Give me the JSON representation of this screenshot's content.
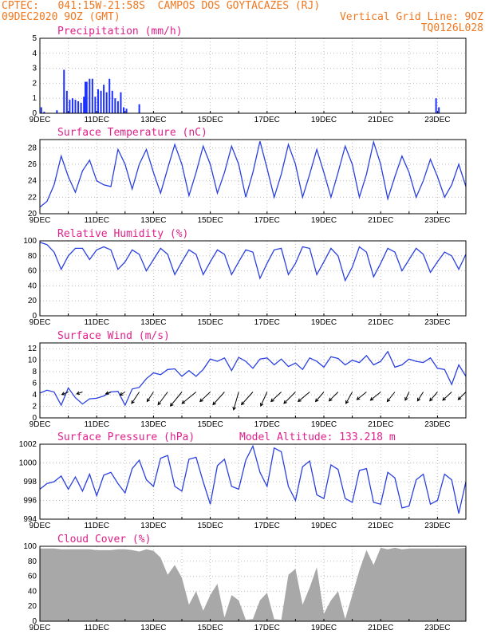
{
  "header": {
    "line1_left": "CPTEC:   041:15W-21:58S  CAMPOS DOS GOYTACAZES (RJ)",
    "line2_left": "09DEC2020 9OZ (GMT)",
    "line2_right": "Vertical Grid Line: 9OZ",
    "line3_right": "TQ0126L028"
  },
  "colors": {
    "series": "#2a40e0",
    "title": "#e0208a",
    "bars": "#1c30ff",
    "cloud": "#a8a8a8",
    "grid": "#bdbdbd"
  },
  "x_tick_labels": [
    "9DEC",
    "11DEC",
    "13DEC",
    "15DEC",
    "17DEC",
    "19DEC",
    "21DEC",
    "23DEC"
  ],
  "chart_data": [
    {
      "type": "bar",
      "title": "Precipitation  (mm/h)",
      "ylim": [
        0,
        5
      ],
      "yticks": [
        0,
        1,
        2,
        3,
        4,
        5
      ],
      "x_unit": "days since 9DEC 00Z",
      "x": [
        0.05,
        0.15,
        0.6,
        0.85,
        0.95,
        1.05,
        1.15,
        1.25,
        1.35,
        1.45,
        1.55,
        1.6,
        1.65,
        1.75,
        1.85,
        1.95,
        2.05,
        2.15,
        2.25,
        2.35,
        2.45,
        2.55,
        2.65,
        2.75,
        2.85,
        2.95,
        3.05,
        3.5,
        13.95,
        14.05
      ],
      "values": [
        0.4,
        0.1,
        0.2,
        2.9,
        1.5,
        0.9,
        1.0,
        0.9,
        0.8,
        0.7,
        1.1,
        2.1,
        2.1,
        2.3,
        2.3,
        1.1,
        1.6,
        1.5,
        1.9,
        1.4,
        2.3,
        1.5,
        1.0,
        0.8,
        1.4,
        0.4,
        0.3,
        0.6,
        1.0,
        0.4
      ]
    },
    {
      "type": "line",
      "title": "Surface Temperature (nC)",
      "ylim": [
        20,
        29
      ],
      "yticks": [
        20,
        22,
        24,
        26,
        28
      ],
      "x": [
        0,
        0.25,
        0.5,
        0.75,
        1,
        1.25,
        1.5,
        1.75,
        2,
        2.25,
        2.5,
        2.75,
        3,
        3.25,
        3.5,
        3.75,
        4,
        4.25,
        4.5,
        4.75,
        5,
        5.25,
        5.5,
        5.75,
        6,
        6.25,
        6.5,
        6.75,
        7,
        7.25,
        7.5,
        7.75,
        8,
        8.25,
        8.5,
        8.75,
        9,
        9.25,
        9.5,
        9.75,
        10,
        10.25,
        10.5,
        10.75,
        11,
        11.25,
        11.5,
        11.75,
        12,
        12.25,
        12.5,
        12.75,
        13,
        13.25,
        13.5,
        13.75,
        14,
        14.25,
        14.5,
        14.75,
        15
      ],
      "values": [
        20.8,
        21.5,
        23.5,
        27,
        24.5,
        22.6,
        25.2,
        26.5,
        24,
        23.5,
        23.3,
        27.8,
        26,
        23,
        26,
        27.8,
        25,
        22.5,
        25.5,
        28.4,
        26,
        22.2,
        25,
        28.2,
        26,
        22.5,
        25,
        28.2,
        26,
        22,
        25,
        28.8,
        25.5,
        22,
        24.8,
        28.4,
        26,
        22,
        24.8,
        27.8,
        25,
        22,
        25,
        28.2,
        26,
        22,
        24.8,
        28.7,
        26,
        21.8,
        24.5,
        27,
        25,
        22,
        24,
        26.6,
        24.5,
        22,
        23.5,
        26,
        23.3
      ]
    },
    {
      "type": "line",
      "title": "Relative Humidity  (%)",
      "ylim": [
        0,
        100
      ],
      "yticks": [
        0,
        20,
        40,
        60,
        80,
        100
      ],
      "x": [
        0,
        0.25,
        0.5,
        0.75,
        1,
        1.25,
        1.5,
        1.75,
        2,
        2.25,
        2.5,
        2.75,
        3,
        3.25,
        3.5,
        3.75,
        4,
        4.25,
        4.5,
        4.75,
        5,
        5.25,
        5.5,
        5.75,
        6,
        6.25,
        6.5,
        6.75,
        7,
        7.25,
        7.5,
        7.75,
        8,
        8.25,
        8.5,
        8.75,
        9,
        9.25,
        9.5,
        9.75,
        10,
        10.25,
        10.5,
        10.75,
        11,
        11.25,
        11.5,
        11.75,
        12,
        12.25,
        12.5,
        12.75,
        13,
        13.25,
        13.5,
        13.75,
        14,
        14.25,
        14.5,
        14.75,
        15
      ],
      "values": [
        98,
        95,
        85,
        62,
        80,
        90,
        90,
        75,
        88,
        92,
        88,
        62,
        72,
        88,
        82,
        60,
        75,
        90,
        82,
        55,
        72,
        88,
        82,
        55,
        72,
        88,
        82,
        55,
        72,
        88,
        85,
        50,
        70,
        88,
        90,
        55,
        70,
        92,
        90,
        55,
        72,
        90,
        80,
        47,
        65,
        92,
        85,
        52,
        70,
        90,
        85,
        60,
        75,
        90,
        82,
        58,
        72,
        85,
        80,
        62,
        82
      ]
    },
    {
      "type": "line",
      "title": "Surface Wind  (m/s)",
      "ylim": [
        0,
        13
      ],
      "yticks": [
        0,
        2,
        4,
        6,
        8,
        10,
        12
      ],
      "x": [
        0,
        0.25,
        0.5,
        0.75,
        1,
        1.25,
        1.5,
        1.75,
        2,
        2.25,
        2.5,
        2.75,
        3,
        3.25,
        3.5,
        3.75,
        4,
        4.25,
        4.5,
        4.75,
        5,
        5.25,
        5.5,
        5.75,
        6,
        6.25,
        6.5,
        6.75,
        7,
        7.25,
        7.5,
        7.75,
        8,
        8.25,
        8.5,
        8.75,
        9,
        9.25,
        9.5,
        9.75,
        10,
        10.25,
        10.5,
        10.75,
        11,
        11.25,
        11.5,
        11.75,
        12,
        12.25,
        12.5,
        12.75,
        13,
        13.25,
        13.5,
        13.75,
        14,
        14.25,
        14.5,
        14.75,
        15
      ],
      "values": [
        4.3,
        4.8,
        4.5,
        2.2,
        5.2,
        3.5,
        2.4,
        3.3,
        3.4,
        3.8,
        4.5,
        4.6,
        2.2,
        5.0,
        5.3,
        6.8,
        7.8,
        7.5,
        8.4,
        8.5,
        7.2,
        8.2,
        7.2,
        8.4,
        10.2,
        9.8,
        10.4,
        8.2,
        10.5,
        9.8,
        8.6,
        10.2,
        10.4,
        9.2,
        10.2,
        8.9,
        9.5,
        8.4,
        10.4,
        9.8,
        8.8,
        10.6,
        10.3,
        9.2,
        10.0,
        9.6,
        10.8,
        9.2,
        9.8,
        11.5,
        8.8,
        9.2,
        10.2,
        9.8,
        9.6,
        10.4,
        8.6,
        8.4,
        5.8,
        9.2,
        7.2
      ],
      "wind_vectors": [
        {
          "x": 1,
          "u": -1.0,
          "v": -0.4
        },
        {
          "x": 1.5,
          "u": -0.9,
          "v": -0.3
        },
        {
          "x": 2.5,
          "u": -0.8,
          "v": -0.3
        },
        {
          "x": 3,
          "u": -0.8,
          "v": -0.5
        },
        {
          "x": 3.5,
          "u": -1.2,
          "v": -1.8
        },
        {
          "x": 4,
          "u": -1.0,
          "v": -1.5
        },
        {
          "x": 4.5,
          "u": -1.5,
          "v": -2.0
        },
        {
          "x": 5,
          "u": -1.8,
          "v": -2.2
        },
        {
          "x": 5.5,
          "u": -2.2,
          "v": -1.8
        },
        {
          "x": 6,
          "u": -1.6,
          "v": -1.5
        },
        {
          "x": 6.5,
          "u": -1.8,
          "v": -2.0
        },
        {
          "x": 7,
          "u": -0.8,
          "v": -2.8
        },
        {
          "x": 7.5,
          "u": -1.8,
          "v": -2.0
        },
        {
          "x": 8,
          "u": -1.0,
          "v": -2.2
        },
        {
          "x": 8.5,
          "u": -1.6,
          "v": -1.5
        },
        {
          "x": 9,
          "u": -1.8,
          "v": -1.8
        },
        {
          "x": 9.5,
          "u": -1.8,
          "v": -1.5
        },
        {
          "x": 10,
          "u": -1.3,
          "v": -1.5
        },
        {
          "x": 10.5,
          "u": -1.4,
          "v": -1.4
        },
        {
          "x": 11,
          "u": -1.0,
          "v": -1.8
        },
        {
          "x": 11.5,
          "u": -1.5,
          "v": -1.2
        },
        {
          "x": 12,
          "u": -1.6,
          "v": -1.3
        },
        {
          "x": 12.5,
          "u": -1.2,
          "v": -1.5
        },
        {
          "x": 13,
          "u": -0.6,
          "v": -1.3
        },
        {
          "x": 13.5,
          "u": -0.9,
          "v": -1.4
        },
        {
          "x": 14,
          "u": -1.2,
          "v": -1.4
        },
        {
          "x": 14.5,
          "u": -1.4,
          "v": -1.3
        },
        {
          "x": 15,
          "u": -1.2,
          "v": -1.2
        }
      ]
    },
    {
      "type": "line",
      "title": "Surface Pressure (hPa)",
      "subtitle": "Model Altitude: 133.218  m",
      "ylim": [
        994,
        1002
      ],
      "yticks": [
        994,
        996,
        998,
        1000,
        1002
      ],
      "x": [
        0,
        0.25,
        0.5,
        0.75,
        1,
        1.25,
        1.5,
        1.75,
        2,
        2.25,
        2.5,
        2.75,
        3,
        3.25,
        3.5,
        3.75,
        4,
        4.25,
        4.5,
        4.75,
        5,
        5.25,
        5.5,
        5.75,
        6,
        6.25,
        6.5,
        6.75,
        7,
        7.25,
        7.5,
        7.75,
        8,
        8.25,
        8.5,
        8.75,
        9,
        9.25,
        9.5,
        9.75,
        10,
        10.25,
        10.5,
        10.75,
        11,
        11.25,
        11.5,
        11.75,
        12,
        12.25,
        12.5,
        12.75,
        13,
        13.25,
        13.5,
        13.75,
        14,
        14.25,
        14.5,
        14.75,
        15
      ],
      "values": [
        997.2,
        997.8,
        998.0,
        998.6,
        997.2,
        998.5,
        997.0,
        998.8,
        996.5,
        998.7,
        999.0,
        997.8,
        996.8,
        999.4,
        1000.3,
        998.2,
        997.5,
        1000.5,
        1000.8,
        997.5,
        997.0,
        1000.4,
        1000.6,
        998.0,
        995.6,
        999.7,
        1000.4,
        997.5,
        997.2,
        1000.3,
        1001.8,
        999.0,
        997.5,
        1001.6,
        1001.2,
        997.5,
        996.0,
        999.6,
        1000.2,
        996.6,
        996.2,
        999.8,
        999.3,
        996.2,
        995.8,
        999.2,
        999.4,
        995.8,
        995.6,
        999.0,
        998.4,
        995.2,
        995.4,
        998.2,
        998.8,
        995.6,
        996.0,
        998.8,
        998.2,
        994.6,
        998.0
      ]
    },
    {
      "type": "area",
      "title": "Cloud Cover  (%)",
      "ylim": [
        0,
        100
      ],
      "yticks": [
        0,
        20,
        40,
        60,
        80,
        100
      ],
      "x": [
        0,
        0.25,
        0.5,
        0.75,
        1,
        1.25,
        1.5,
        1.75,
        2,
        2.25,
        2.5,
        2.75,
        3,
        3.25,
        3.5,
        3.75,
        4,
        4.25,
        4.5,
        4.75,
        5,
        5.25,
        5.5,
        5.75,
        6,
        6.25,
        6.5,
        6.75,
        7,
        7.25,
        7.5,
        7.75,
        8,
        8.25,
        8.5,
        8.75,
        9,
        9.25,
        9.5,
        9.75,
        10,
        10.25,
        10.5,
        10.75,
        11,
        11.25,
        11.5,
        11.75,
        12,
        12.25,
        12.5,
        12.75,
        13,
        13.25,
        13.5,
        13.75,
        14,
        14.25,
        14.5,
        14.75,
        15
      ],
      "values": [
        97,
        97,
        97,
        96,
        96,
        96,
        96,
        96,
        95,
        95,
        95,
        96,
        96,
        95,
        93,
        96,
        94,
        85,
        62,
        75,
        58,
        22,
        40,
        14,
        35,
        50,
        5,
        35,
        28,
        2,
        3,
        28,
        38,
        3,
        2,
        62,
        70,
        22,
        45,
        72,
        10,
        28,
        40,
        3,
        35,
        68,
        95,
        75,
        98,
        96,
        98,
        96,
        97,
        97,
        97,
        97,
        97,
        97,
        97,
        97,
        98
      ]
    }
  ]
}
